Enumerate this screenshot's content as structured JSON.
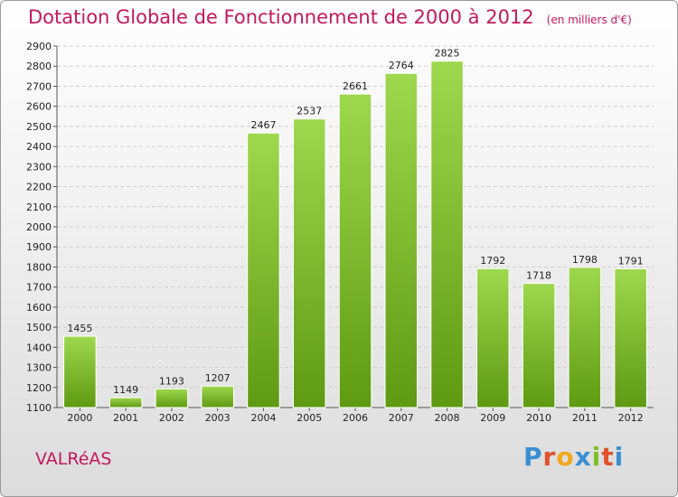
{
  "chart_data": {
    "type": "bar",
    "title": "Dotation Globale de Fonctionnement de 2000 à 2012",
    "unit_note": "(en milliers d'€)",
    "categories": [
      "2000",
      "2001",
      "2002",
      "2003",
      "2004",
      "2005",
      "2006",
      "2007",
      "2008",
      "2009",
      "2010",
      "2011",
      "2012"
    ],
    "values": [
      1455,
      1149,
      1193,
      1207,
      2467,
      2537,
      2661,
      2764,
      2825,
      1792,
      1718,
      1798,
      1791
    ],
    "ylim": [
      1100,
      2900
    ],
    "ytick_step": 100,
    "grid": true,
    "xlabel": "",
    "ylabel": ""
  },
  "footer": {
    "place": "VALRéAS",
    "logo_letters": [
      "P",
      "r",
      "o",
      "x",
      "i",
      "t",
      "i"
    ]
  },
  "colors": {
    "bar_top": "#9ed84e",
    "bar_bottom": "#5e9a12",
    "title": "#c2185b",
    "logo": [
      "#3a8fd4",
      "#e0522c",
      "#f2a81d",
      "#3a8fd4",
      "#7fbf2a",
      "#e0522c",
      "#3a8fd4"
    ]
  }
}
